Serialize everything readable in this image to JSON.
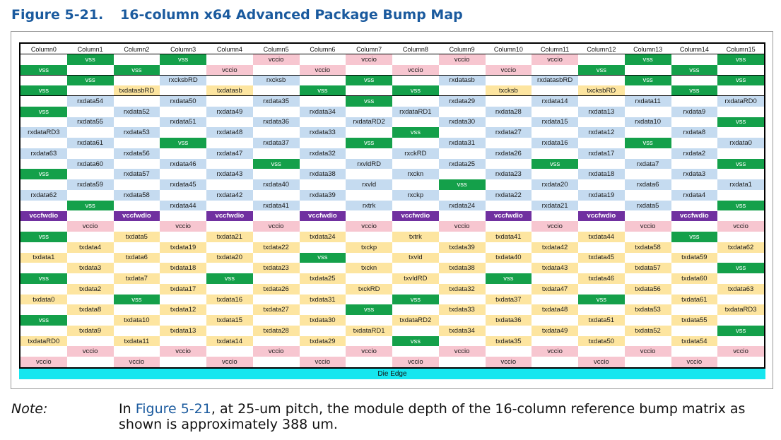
{
  "figure": {
    "number": "Figure 5-21.",
    "title": "16-column x64 Advanced Package Bump Map"
  },
  "bump_map": {
    "columns": [
      "Column0",
      "Column1",
      "Column2",
      "Column3",
      "Column4",
      "Column5",
      "Column6",
      "Column7",
      "Column8",
      "Column9",
      "Column10",
      "Column11",
      "Column12",
      "Column13",
      "Column14",
      "Column15"
    ],
    "rows": [
      [
        "",
        "vss",
        "",
        "vss",
        "",
        "vccio",
        "",
        "vccio",
        "",
        "vccio",
        "",
        "vccio",
        "",
        "vss",
        "",
        "vss"
      ],
      [
        "vss",
        "",
        "vss",
        "",
        "vccio",
        "",
        "vccio",
        "",
        "vccio",
        "",
        "vccio",
        "",
        "vss",
        "",
        "vss",
        ""
      ],
      [
        "",
        "vss",
        "",
        "rxcksbRD",
        "",
        "rxcksb",
        "",
        "vss",
        "",
        "rxdatasb",
        "",
        "rxdatasbRD",
        "",
        "vss",
        "",
        "vss"
      ],
      [
        "vss",
        "",
        "txdatasbRD",
        "",
        "txdatasb",
        "",
        "vss",
        "",
        "vss",
        "",
        "txcksb",
        "",
        "txcksbRD",
        "",
        "vss",
        ""
      ],
      [
        "",
        "rxdata54",
        "",
        "rxdata50",
        "",
        "rxdata35",
        "",
        "vss",
        "",
        "rxdata29",
        "",
        "rxdata14",
        "",
        "rxdata11",
        "",
        "rxdataRD0"
      ],
      [
        "vss",
        "",
        "rxdata52",
        "",
        "rxdata49",
        "",
        "rxdata34",
        "",
        "rxdataRD1",
        "",
        "rxdata28",
        "",
        "rxdata13",
        "",
        "rxdata9",
        ""
      ],
      [
        "",
        "rxdata55",
        "",
        "rxdata51",
        "",
        "rxdata36",
        "",
        "rxdataRD2",
        "",
        "rxdata30",
        "",
        "rxdata15",
        "",
        "rxdata10",
        "",
        "vss"
      ],
      [
        "rxdataRD3",
        "",
        "rxdata53",
        "",
        "rxdata48",
        "",
        "rxdata33",
        "",
        "vss",
        "",
        "rxdata27",
        "",
        "rxdata12",
        "",
        "rxdata8",
        ""
      ],
      [
        "",
        "rxdata61",
        "",
        "vss",
        "",
        "rxdata37",
        "",
        "vss",
        "",
        "rxdata31",
        "",
        "rxdata16",
        "",
        "vss",
        "",
        "rxdata0"
      ],
      [
        "rxdata63",
        "",
        "rxdata56",
        "",
        "rxdata47",
        "",
        "rxdata32",
        "",
        "rxckRD",
        "",
        "rxdata26",
        "",
        "rxdata17",
        "",
        "rxdata2",
        ""
      ],
      [
        "",
        "rxdata60",
        "",
        "rxdata46",
        "",
        "vss",
        "",
        "rxvldRD",
        "",
        "rxdata25",
        "",
        "vss",
        "",
        "rxdata7",
        "",
        "vss"
      ],
      [
        "vss",
        "",
        "rxdata57",
        "",
        "rxdata43",
        "",
        "rxdata38",
        "",
        "rxckn",
        "",
        "rxdata23",
        "",
        "rxdata18",
        "",
        "rxdata3",
        ""
      ],
      [
        "",
        "rxdata59",
        "",
        "rxdata45",
        "",
        "rxdata40",
        "",
        "rxvld",
        "",
        "vss",
        "",
        "rxdata20",
        "",
        "rxdata6",
        "",
        "rxdata1"
      ],
      [
        "rxdata62",
        "",
        "rxdata58",
        "",
        "rxdata42",
        "",
        "rxdata39",
        "",
        "rxckp",
        "",
        "rxdata22",
        "",
        "rxdata19",
        "",
        "rxdata4",
        ""
      ],
      [
        "",
        "vss",
        "",
        "rxdata44",
        "",
        "rxdata41",
        "",
        "rxtrk",
        "",
        "rxdata24",
        "",
        "rxdata21",
        "",
        "rxdata5",
        "",
        "vss"
      ],
      [
        "vccfwdio",
        "",
        "vccfwdio",
        "",
        "vccfwdio",
        "",
        "vccfwdio",
        "",
        "vccfwdio",
        "",
        "vccfwdio",
        "",
        "vccfwdio",
        "",
        "vccfwdio",
        ""
      ],
      [
        "",
        "vccio",
        "",
        "vccio",
        "",
        "vccio",
        "",
        "vccio",
        "",
        "vccio",
        "",
        "vccio",
        "",
        "vccio",
        "",
        "vccio"
      ],
      [
        "vss",
        "",
        "txdata5",
        "",
        "txdata21",
        "",
        "txdata24",
        "",
        "txtrk",
        "",
        "txdata41",
        "",
        "txdata44",
        "",
        "vss",
        ""
      ],
      [
        "",
        "txdata4",
        "",
        "txdata19",
        "",
        "txdata22",
        "",
        "txckp",
        "",
        "txdata39",
        "",
        "txdata42",
        "",
        "txdata58",
        "",
        "txdata62"
      ],
      [
        "txdata1",
        "",
        "txdata6",
        "",
        "txdata20",
        "",
        "vss",
        "",
        "txvld",
        "",
        "txdata40",
        "",
        "txdata45",
        "",
        "txdata59",
        ""
      ],
      [
        "",
        "txdata3",
        "",
        "txdata18",
        "",
        "txdata23",
        "",
        "txckn",
        "",
        "txdata38",
        "",
        "txdata43",
        "",
        "txdata57",
        "",
        "vss"
      ],
      [
        "vss",
        "",
        "txdata7",
        "",
        "vss",
        "",
        "txdata25",
        "",
        "txvldRD",
        "",
        "vss",
        "",
        "txdata46",
        "",
        "txdata60",
        ""
      ],
      [
        "",
        "txdata2",
        "",
        "txdata17",
        "",
        "txdata26",
        "",
        "txckRD",
        "",
        "txdata32",
        "",
        "txdata47",
        "",
        "txdata56",
        "",
        "txdata63"
      ],
      [
        "txdata0",
        "",
        "vss",
        "",
        "txdata16",
        "",
        "txdata31",
        "",
        "vss",
        "",
        "txdata37",
        "",
        "vss",
        "",
        "txdata61",
        ""
      ],
      [
        "",
        "txdata8",
        "",
        "txdata12",
        "",
        "txdata27",
        "",
        "vss",
        "",
        "txdata33",
        "",
        "txdata48",
        "",
        "txdata53",
        "",
        "txdataRD3"
      ],
      [
        "vss",
        "",
        "txdata10",
        "",
        "txdata15",
        "",
        "txdata30",
        "",
        "txdataRD2",
        "",
        "txdata36",
        "",
        "txdata51",
        "",
        "txdata55",
        ""
      ],
      [
        "",
        "txdata9",
        "",
        "txdata13",
        "",
        "txdata28",
        "",
        "txdataRD1",
        "",
        "txdata34",
        "",
        "txdata49",
        "",
        "txdata52",
        "",
        "vss"
      ],
      [
        "txdataRD0",
        "",
        "txdata11",
        "",
        "txdata14",
        "",
        "txdata29",
        "",
        "vss",
        "",
        "txdata35",
        "",
        "txdata50",
        "",
        "txdata54",
        ""
      ],
      [
        "",
        "vccio",
        "",
        "vccio",
        "",
        "vccio",
        "",
        "vccio",
        "",
        "vccio",
        "",
        "vccio",
        "",
        "vccio",
        "",
        "vccio"
      ],
      [
        "vccio",
        "",
        "vccio",
        "",
        "vccio",
        "",
        "vccio",
        "",
        "vccio",
        "",
        "vccio",
        "",
        "vccio",
        "",
        "vccio",
        ""
      ]
    ],
    "die_edge_label": "Die Edge",
    "colors": {
      "vss": "#14a04a",
      "vccio": "#f7c6d0",
      "rx": "#c5dbf0",
      "tx": "#fde5a0",
      "vccfwdio": "#7030a0",
      "die_edge": "#16e6ef"
    }
  },
  "note": {
    "label": "Note:",
    "text_before": "In ",
    "link_text": "Figure 5-21",
    "text_after": ", at 25-um pitch, the module depth of the 16-column reference bump matrix as shown is approximately 388 um."
  }
}
